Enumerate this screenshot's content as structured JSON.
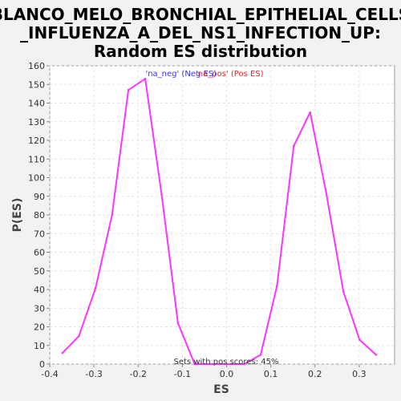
{
  "chart_data": {
    "type": "line",
    "title_lines": [
      "BLANCO_MELO_BRONCHIAL_EPITHELIAL_CELLS",
      "_INFLUENZA_A_DEL_NS1_INFECTION_UP:",
      "Random ES distribution"
    ],
    "xlabel": "ES",
    "ylabel": "P(ES)",
    "xlim": [
      -0.4,
      0.38
    ],
    "ylim": [
      0,
      160
    ],
    "x_ticks": [
      -0.4,
      -0.3,
      -0.2,
      -0.1,
      0.0,
      0.1,
      0.2,
      0.3
    ],
    "x_tick_labels": [
      "-0.4",
      "-0.3",
      "-0.2",
      "-0.1",
      "0.0",
      "0.1",
      "0.2",
      "0.3"
    ],
    "y_ticks": [
      0,
      10,
      20,
      30,
      40,
      50,
      60,
      70,
      80,
      90,
      100,
      110,
      120,
      130,
      140,
      150,
      160
    ],
    "grid": true,
    "legend": [
      {
        "label": "'na_neg' (Neg ES)",
        "color": "#3333ff"
      },
      {
        "label": "'na_pos' (Pos ES)",
        "color": "#ee2222"
      }
    ],
    "series": [
      {
        "color": "#ff33ff",
        "points": [
          [
            -0.371,
            6
          ],
          [
            -0.334,
            15
          ],
          [
            -0.296,
            41
          ],
          [
            -0.259,
            80
          ],
          [
            -0.222,
            147
          ],
          [
            -0.184,
            153
          ],
          [
            -0.147,
            91
          ],
          [
            -0.11,
            22
          ],
          [
            -0.072,
            0
          ],
          [
            -0.035,
            0
          ],
          [
            0.002,
            0
          ],
          [
            0.04,
            0
          ],
          [
            0.077,
            5
          ],
          [
            0.114,
            42
          ],
          [
            0.152,
            117
          ],
          [
            0.189,
            135
          ],
          [
            0.226,
            91
          ],
          [
            0.264,
            39
          ],
          [
            0.301,
            13
          ],
          [
            0.338,
            5
          ]
        ]
      }
    ],
    "annotation": "Sets with pos scores: 45%"
  }
}
